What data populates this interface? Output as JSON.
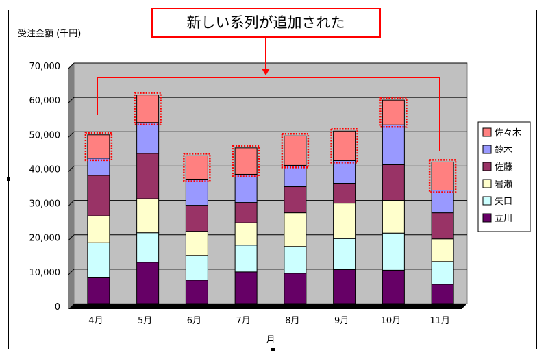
{
  "chart_data": {
    "type": "bar",
    "stacked": true,
    "title": "",
    "ylabel": "受注金額 (千円)",
    "xlabel": "月",
    "ylim": [
      0,
      70000
    ],
    "yticks": [
      0,
      10000,
      20000,
      30000,
      40000,
      50000,
      60000,
      70000
    ],
    "ytick_labels": [
      "0",
      "10,000",
      "20,000",
      "30,000",
      "40,000",
      "50,000",
      "60,000",
      "70,000"
    ],
    "grid": true,
    "legend_position": "right",
    "categories": [
      "4月",
      "5月",
      "6月",
      "7月",
      "8月",
      "9月",
      "10月",
      "11月"
    ],
    "series": [
      {
        "name": "立川",
        "color": "#660066",
        "values": [
          7500,
          12000,
          6800,
          9200,
          8800,
          9900,
          9700,
          5600
        ]
      },
      {
        "name": "矢口",
        "color": "#CCFFFF",
        "values": [
          10200,
          8600,
          7200,
          7800,
          7800,
          9000,
          10800,
          6600
        ]
      },
      {
        "name": "岩瀬",
        "color": "#FFFFCC",
        "values": [
          7800,
          9900,
          7000,
          6500,
          9800,
          10300,
          9500,
          6600
        ]
      },
      {
        "name": "佐藤",
        "color": "#993366",
        "values": [
          11800,
          13200,
          7600,
          5900,
          7600,
          5800,
          10400,
          7600
        ]
      },
      {
        "name": "鈴木",
        "color": "#9999FF",
        "values": [
          5000,
          9000,
          7600,
          8200,
          6200,
          6600,
          11600,
          6600
        ]
      },
      {
        "name": "佐々木",
        "color": "#FF8080",
        "values": [
          6800,
          8000,
          6800,
          7700,
          8600,
          8600,
          7200,
          8200
        ]
      }
    ],
    "annotation": "新しい系列が追加された"
  },
  "colors": {
    "plot_background": "#C0C0C0",
    "annotation_border": "#FF0000",
    "highlight_dots": "#FF0000"
  }
}
